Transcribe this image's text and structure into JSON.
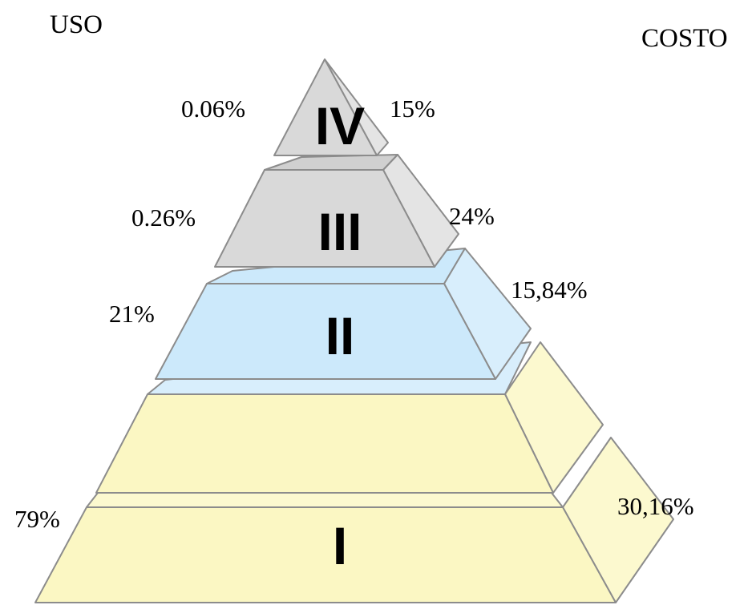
{
  "headers": {
    "left": "USO",
    "right": "COSTO"
  },
  "levels": [
    {
      "numeral": "IV",
      "uso": "0.06%",
      "costo": "15%"
    },
    {
      "numeral": "III",
      "uso": "0.26%",
      "costo": "24%"
    },
    {
      "numeral": "II",
      "uso": "21%",
      "costo": "15,84%"
    },
    {
      "numeral": "I",
      "uso": "79%",
      "costo": "30,16%"
    }
  ],
  "colors": {
    "gray_front": "#d9d9d9",
    "gray_side": "#e4e4e4",
    "gray_top": "#d0d0d0",
    "blue_front": "#cce9fb",
    "blue_side": "#d8eefc",
    "yellow_front": "#fbf7c3",
    "yellow_side": "#fcf9cf",
    "edge": "#8c8c8c"
  }
}
